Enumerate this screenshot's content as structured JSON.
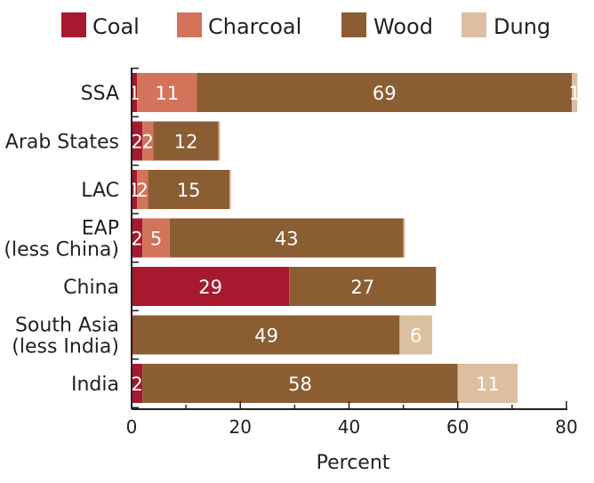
{
  "chart_data": {
    "type": "bar",
    "orientation": "horizontal",
    "stacked": true,
    "title": "",
    "xlabel": "Percent",
    "ylabel": "",
    "xlim": [
      0,
      80
    ],
    "x_ticks": [
      0,
      20,
      40,
      60,
      80
    ],
    "grid": false,
    "legend_position": "top",
    "categories": [
      [
        "SSA"
      ],
      [
        "Arab States"
      ],
      [
        "LAC"
      ],
      [
        "EAP",
        "(less China)"
      ],
      [
        "China"
      ],
      [
        "South Asia",
        "(less India)"
      ],
      [
        "India"
      ]
    ],
    "series": [
      {
        "name": "Coal",
        "color": "#a6192e",
        "values": [
          1,
          2,
          1,
          2,
          29,
          0.3,
          2
        ],
        "labels": [
          "1",
          "2",
          "1",
          "2",
          "29",
          "",
          "2"
        ]
      },
      {
        "name": "Charcoal",
        "color": "#d2735a",
        "values": [
          11,
          2,
          2,
          5,
          0,
          0,
          0
        ],
        "labels": [
          "11",
          "2",
          "2",
          "5",
          "",
          "",
          ""
        ]
      },
      {
        "name": "Wood",
        "color": "#8b5d33",
        "values": [
          69,
          12,
          15,
          43,
          27,
          49,
          58
        ],
        "labels": [
          "69",
          "12",
          "15",
          "43",
          "27",
          "49",
          "58"
        ]
      },
      {
        "name": "Dung",
        "color": "#dcbea0",
        "values": [
          1,
          0.3,
          0.3,
          0.3,
          0,
          6,
          11
        ],
        "labels": [
          "1",
          "",
          "",
          "",
          "",
          "6",
          "11"
        ]
      }
    ]
  }
}
